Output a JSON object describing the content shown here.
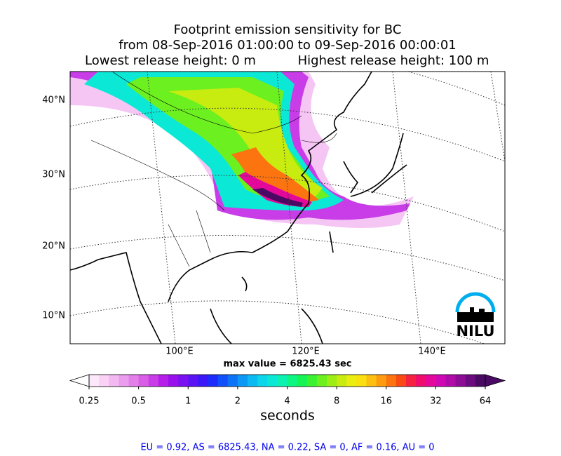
{
  "header": {
    "title": [
      "Footprint emission sensitivity for BC",
      "from 08-Sep-2016 01:00:00 to 09-Sep-2016 00:00:01"
    ],
    "release_low": "Lowest release height: 0 m",
    "release_high": "Highest release height: 100 m"
  },
  "map": {
    "lat_labels": [
      "40°N",
      "30°N",
      "20°N",
      "10°N"
    ],
    "lon_labels": [
      "100°E",
      "120°E",
      "140°E"
    ],
    "max_value": "max value = 6825.43 sec",
    "logo": "NILU"
  },
  "colorbar": {
    "lim": [
      0.25,
      64
    ],
    "ticks": [
      0.25,
      0.5,
      1,
      2,
      4,
      8,
      16,
      32,
      64
    ],
    "log": true,
    "label": "seconds",
    "colors": [
      "#fde8fb",
      "#f9d2f6",
      "#f3b8f1",
      "#eb9ded",
      "#e27fe9",
      "#d85fe5",
      "#c83de8",
      "#b51fe9",
      "#9a10ec",
      "#7b10f0",
      "#5a14f4",
      "#3a18f8",
      "#1e2cfb",
      "#1150fa",
      "#0e74f7",
      "#0c98f4",
      "#0abaf0",
      "#0bd6ea",
      "#0ce8d6",
      "#0cf2b0",
      "#0cf683",
      "#14f555",
      "#3af232",
      "#6cf020",
      "#9cee14",
      "#c8ec10",
      "#eaee10",
      "#fae010",
      "#fdc010",
      "#fd9c10",
      "#fc7410",
      "#fa4a14",
      "#f62040",
      "#ef0c6c",
      "#e4089a",
      "#cf08b4",
      "#b00aa8",
      "#8c0c96",
      "#6a0c7e",
      "#4a0a64"
    ],
    "under_color": "#ffffff",
    "over_color": "#4a0a64"
  },
  "footer": {
    "stats": "EU = 0.92,  AS = 6825.43,  NA = 0.22,  SA = 0,  AF = 0.16,  AU = 0"
  }
}
